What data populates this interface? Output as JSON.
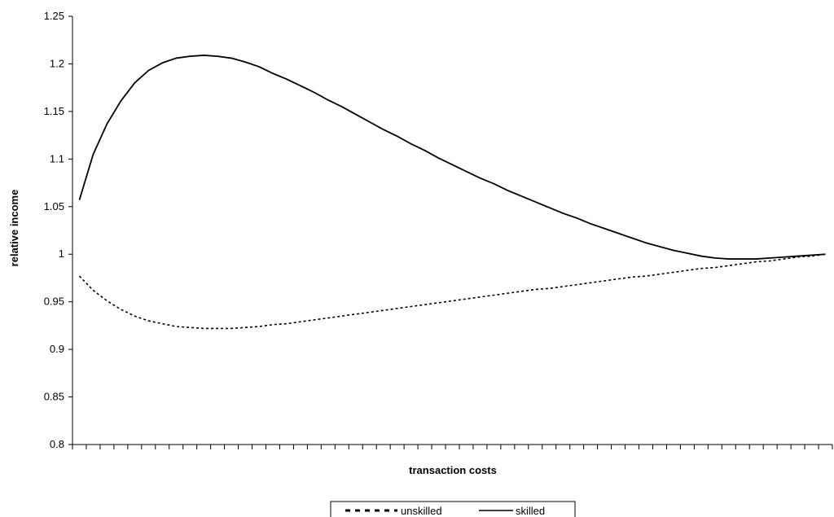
{
  "chart_data": {
    "type": "line",
    "title": "",
    "xlabel": "transaction costs",
    "ylabel": "relative income",
    "ylim": [
      0.8,
      1.25
    ],
    "yticks": [
      "0.8",
      "0.85",
      "0.9",
      "0.95",
      "1",
      "1.05",
      "1.1",
      "1.15",
      "1.2",
      "1.25"
    ],
    "x_category_count": 55,
    "x": [
      1,
      2,
      3,
      4,
      5,
      6,
      7,
      8,
      9,
      10,
      11,
      12,
      13,
      14,
      15,
      16,
      17,
      18,
      19,
      20,
      21,
      22,
      23,
      24,
      25,
      26,
      27,
      28,
      29,
      30,
      31,
      32,
      33,
      34,
      35,
      36,
      37,
      38,
      39,
      40,
      41,
      42,
      43,
      44,
      45,
      46,
      47,
      48,
      49,
      50,
      51,
      52,
      53,
      54,
      55
    ],
    "grid": false,
    "legend_position": "bottom",
    "series": [
      {
        "name": "unskilled",
        "line_style": "dashed",
        "color": "#000000",
        "values": [
          0.977,
          0.962,
          0.951,
          0.942,
          0.935,
          0.93,
          0.927,
          0.924,
          0.923,
          0.922,
          0.922,
          0.922,
          0.923,
          0.924,
          0.926,
          0.927,
          0.929,
          0.931,
          0.933,
          0.935,
          0.937,
          0.939,
          0.941,
          0.943,
          0.945,
          0.947,
          0.949,
          0.951,
          0.953,
          0.955,
          0.957,
          0.959,
          0.961,
          0.963,
          0.964,
          0.966,
          0.968,
          0.97,
          0.972,
          0.974,
          0.976,
          0.977,
          0.979,
          0.981,
          0.983,
          0.985,
          0.986,
          0.988,
          0.99,
          0.992,
          0.993,
          0.995,
          0.997,
          0.998,
          1.0
        ]
      },
      {
        "name": "skilled",
        "line_style": "solid",
        "color": "#000000",
        "values": [
          1.057,
          1.105,
          1.137,
          1.161,
          1.18,
          1.193,
          1.201,
          1.206,
          1.208,
          1.209,
          1.208,
          1.206,
          1.202,
          1.197,
          1.19,
          1.184,
          1.177,
          1.17,
          1.162,
          1.155,
          1.147,
          1.139,
          1.131,
          1.124,
          1.116,
          1.109,
          1.101,
          1.094,
          1.087,
          1.08,
          1.074,
          1.067,
          1.061,
          1.055,
          1.049,
          1.043,
          1.038,
          1.032,
          1.027,
          1.022,
          1.017,
          1.012,
          1.008,
          1.004,
          1.001,
          0.998,
          0.996,
          0.995,
          0.995,
          0.995,
          0.996,
          0.997,
          0.998,
          0.999,
          1.0
        ]
      }
    ]
  }
}
